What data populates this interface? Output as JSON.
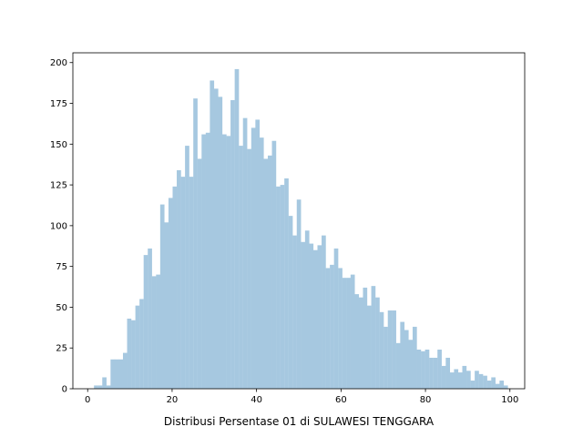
{
  "chart_data": {
    "type": "bar",
    "title": "",
    "xlabel": "Distribusi Persentase 01 di SULAWESI TENGGARA",
    "ylabel": "",
    "xlim": [
      -3.5,
      103.5
    ],
    "ylim": [
      0,
      206
    ],
    "xticks": [
      0,
      20,
      40,
      60,
      80,
      100
    ],
    "yticks": [
      0,
      25,
      50,
      75,
      100,
      125,
      150,
      175,
      200
    ],
    "bin_start": 1.5,
    "bin_width": 0.98,
    "bar_color": "#a6c8e0",
    "grid": false,
    "values": [
      2,
      2,
      7,
      2,
      18,
      18,
      18,
      22,
      43,
      42,
      51,
      55,
      82,
      86,
      69,
      70,
      113,
      102,
      117,
      124,
      134,
      130,
      149,
      130,
      178,
      141,
      156,
      157,
      189,
      184,
      179,
      156,
      155,
      177,
      196,
      149,
      166,
      147,
      160,
      165,
      154,
      141,
      143,
      152,
      124,
      125,
      129,
      106,
      94,
      116,
      90,
      97,
      89,
      85,
      88,
      94,
      74,
      76,
      86,
      74,
      68,
      68,
      70,
      58,
      56,
      62,
      51,
      63,
      56,
      47,
      38,
      48,
      48,
      28,
      41,
      36,
      30,
      38,
      24,
      23,
      24,
      19,
      19,
      24,
      14,
      19,
      10,
      12,
      10,
      14,
      11,
      5,
      11,
      9,
      8,
      5,
      7,
      3,
      5,
      2
    ]
  }
}
